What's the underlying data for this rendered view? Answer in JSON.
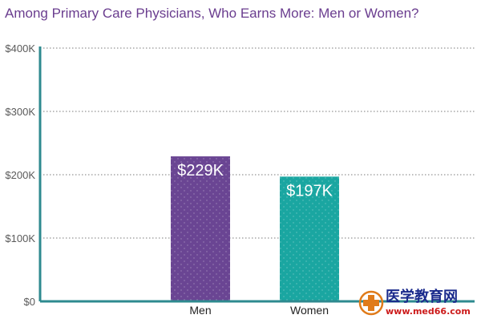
{
  "chart_data": {
    "type": "bar",
    "title": "Among Primary Care Physicians, Who Earns More: Men or Women?",
    "xlabel": "",
    "ylabel": "",
    "categories": [
      "Men",
      "Women"
    ],
    "values": [
      229,
      197
    ],
    "value_labels": [
      "$229K",
      "$197K"
    ],
    "ylim": [
      0,
      400
    ],
    "yticks": [
      0,
      100,
      200,
      300,
      400
    ],
    "ytick_labels": [
      "$0",
      "$100K",
      "$200K",
      "$300K",
      "$400K"
    ],
    "grid": true,
    "legend": "none",
    "colors": [
      "#6a4593",
      "#1aa6a1"
    ],
    "title_color": "#6a3d8f",
    "axis_color": "#2e8a8f",
    "grid_color": "#7a7a7a"
  },
  "watermark": {
    "icon": "medical-cross-icon",
    "text_cn": "医学教育网",
    "url": "www.med66.com",
    "color_cn": "#1a2a8c",
    "color_url": "#cc1a1a",
    "icon_color": "#e07b1a"
  }
}
